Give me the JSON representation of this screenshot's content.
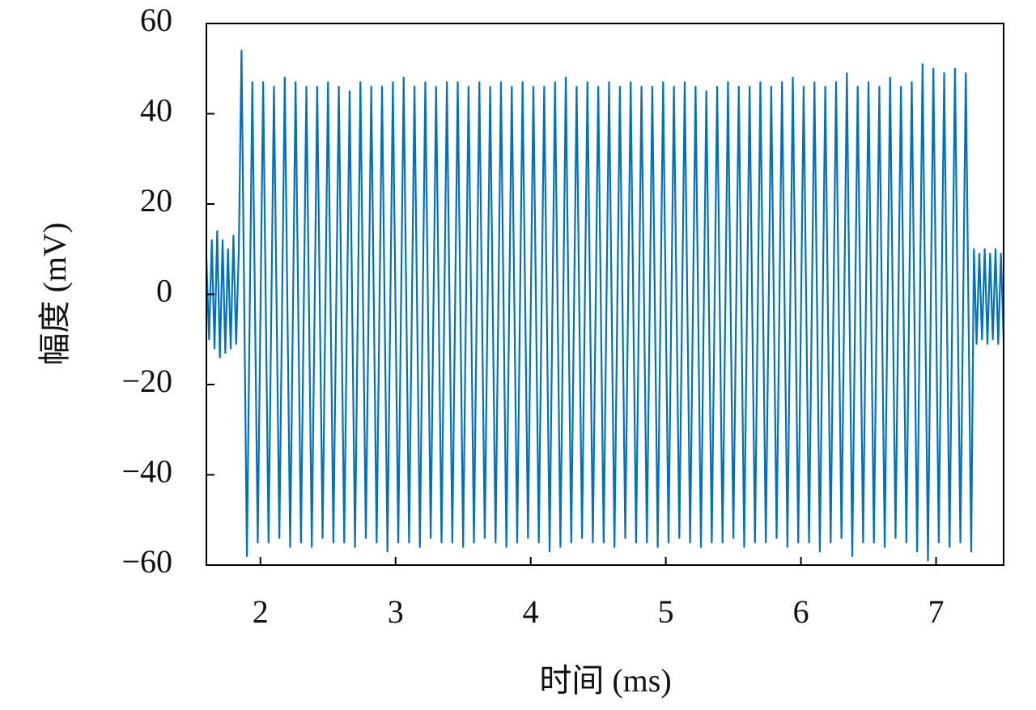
{
  "chart_data": {
    "type": "line",
    "xlabel": "时间 (ms)",
    "ylabel": "幅度 (mV)",
    "color": "#0072bd",
    "xlim": [
      1.6,
      7.5
    ],
    "xticks": [
      2,
      3,
      4,
      5,
      6,
      7
    ],
    "ylim": [
      -60,
      60
    ],
    "yticks": [
      {
        "value": -60,
        "label": "−60"
      },
      {
        "value": -40,
        "label": "−40"
      },
      {
        "value": -20,
        "label": "−20"
      },
      0,
      20,
      40,
      60
    ],
    "x": [
      1.6,
      1.62,
      1.64,
      1.66,
      1.68,
      1.7,
      1.72,
      1.74,
      1.76,
      1.78,
      1.8,
      1.82,
      1.84,
      1.86,
      1.9,
      1.94,
      1.98,
      2.02,
      2.06,
      2.1,
      2.14,
      2.18,
      2.22,
      2.26,
      2.3,
      2.34,
      2.38,
      2.42,
      2.46,
      2.5,
      2.54,
      2.58,
      2.62,
      2.66,
      2.7,
      2.74,
      2.78,
      2.82,
      2.86,
      2.9,
      2.94,
      2.98,
      3.02,
      3.06,
      3.1,
      3.14,
      3.18,
      3.22,
      3.26,
      3.3,
      3.34,
      3.38,
      3.42,
      3.46,
      3.5,
      3.54,
      3.58,
      3.62,
      3.66,
      3.7,
      3.74,
      3.78,
      3.82,
      3.86,
      3.9,
      3.94,
      3.98,
      4.02,
      4.06,
      4.1,
      4.14,
      4.18,
      4.22,
      4.26,
      4.3,
      4.34,
      4.38,
      4.42,
      4.46,
      4.5,
      4.54,
      4.58,
      4.62,
      4.66,
      4.7,
      4.74,
      4.78,
      4.82,
      4.86,
      4.9,
      4.94,
      4.98,
      5.02,
      5.06,
      5.1,
      5.14,
      5.18,
      5.22,
      5.26,
      5.3,
      5.34,
      5.38,
      5.42,
      5.46,
      5.5,
      5.54,
      5.58,
      5.62,
      5.66,
      5.7,
      5.74,
      5.78,
      5.82,
      5.86,
      5.9,
      5.94,
      5.98,
      6.02,
      6.06,
      6.1,
      6.14,
      6.18,
      6.22,
      6.26,
      6.3,
      6.34,
      6.38,
      6.42,
      6.46,
      6.5,
      6.54,
      6.58,
      6.62,
      6.66,
      6.7,
      6.74,
      6.78,
      6.82,
      6.86,
      6.9,
      6.94,
      6.98,
      7.02,
      7.06,
      7.1,
      7.14,
      7.18,
      7.22,
      7.26,
      7.28,
      7.3,
      7.32,
      7.34,
      7.36,
      7.38,
      7.4,
      7.42,
      7.44,
      7.46,
      7.48,
      7.5
    ],
    "values": [
      8,
      -10,
      12,
      -12,
      14,
      -14,
      12,
      -13,
      10,
      -12,
      13,
      -11,
      10,
      54,
      -58,
      47,
      -55,
      47,
      -55,
      46,
      -54,
      48,
      -56,
      47,
      -55,
      46,
      -56,
      46,
      -54,
      47,
      -55,
      46,
      -55,
      45,
      -56,
      47,
      -54,
      46,
      -55,
      46,
      -57,
      47,
      -55,
      48,
      -55,
      46,
      -56,
      47,
      -54,
      46,
      -55,
      47,
      -55,
      47,
      -56,
      46,
      -55,
      47,
      -54,
      46,
      -55,
      47,
      -56,
      46,
      -55,
      47,
      -54,
      46,
      -55,
      46,
      -57,
      47,
      -56,
      48,
      -55,
      46,
      -54,
      47,
      -55,
      46,
      -55,
      47,
      -56,
      46,
      -54,
      47,
      -55,
      46,
      -55,
      46,
      -56,
      47,
      -55,
      46,
      -54,
      47,
      -55,
      46,
      -56,
      45,
      -55,
      46,
      -55,
      47,
      -54,
      46,
      -56,
      46,
      -55,
      47,
      -55,
      46,
      -54,
      47,
      -56,
      48,
      -55,
      46,
      -55,
      47,
      -57,
      46,
      -55,
      47,
      -54,
      49,
      -58,
      46,
      -55,
      47,
      -55,
      46,
      -56,
      48,
      -54,
      46,
      -55,
      47,
      -57,
      51,
      -59,
      50,
      -55,
      49,
      -56,
      50,
      -55,
      49,
      -57,
      10,
      -11,
      9,
      -10,
      10,
      -11,
      9,
      -10,
      10,
      -11,
      9,
      -10
    ]
  }
}
